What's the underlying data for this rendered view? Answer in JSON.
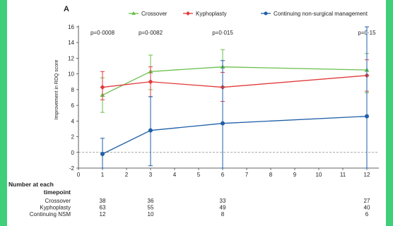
{
  "chart_data": {
    "type": "line",
    "panel_label": "A",
    "ylabel": "Improvement in RDQ score",
    "x_ticks": [
      0,
      1,
      2,
      3,
      4,
      5,
      6,
      7,
      8,
      9,
      10,
      11,
      12
    ],
    "y_ticks": [
      -2,
      0,
      2,
      4,
      6,
      8,
      10,
      12,
      14,
      16
    ],
    "xlim": [
      0,
      12.5
    ],
    "ylim": [
      -2,
      16
    ],
    "reference_line": 0,
    "legend_position": "top-right",
    "series": [
      {
        "name": "Crossover",
        "color": "#6abf4b",
        "marker": "triangle",
        "x": [
          1,
          3,
          6,
          12
        ],
        "y": [
          7.3,
          10.3,
          10.9,
          10.5
        ],
        "err_low": [
          5.1,
          8.0,
          8.4,
          7.6
        ],
        "err_high": [
          9.5,
          12.4,
          13.1,
          12.6
        ]
      },
      {
        "name": "Kyphoplasty",
        "color": "#e23a3a",
        "marker": "diamond",
        "x": [
          1,
          3,
          6,
          12
        ],
        "y": [
          8.3,
          9.0,
          8.3,
          9.8
        ],
        "err_low": [
          6.7,
          7.1,
          6.5,
          7.8
        ],
        "err_high": [
          10.3,
          10.9,
          10.2,
          11.8
        ]
      },
      {
        "name": "Continuing non-surgical management",
        "color": "#1f5fa8",
        "marker": "circle",
        "x": [
          1,
          3,
          6,
          12
        ],
        "y": [
          -0.2,
          2.8,
          3.7,
          4.6
        ],
        "err_low": [
          -2.0,
          -1.7,
          -2.0,
          -2.0
        ],
        "err_high": [
          1.8,
          7.1,
          11.7,
          16.4
        ]
      }
    ],
    "p_values": [
      {
        "x": 1,
        "label": "p=0·0008"
      },
      {
        "x": 3,
        "label": "p=0·0082"
      },
      {
        "x": 6,
        "label": "p=0·015"
      },
      {
        "x": 12,
        "label": "p=0·15"
      }
    ],
    "risk_table": {
      "title_line1": "Number at each",
      "title_line2": "timepoint",
      "rows": [
        {
          "label": "Crossover",
          "values": [
            "38",
            "36",
            "33",
            "27"
          ]
        },
        {
          "label": "Kyphoplasty",
          "values": [
            "63",
            "55",
            "49",
            "40"
          ]
        },
        {
          "label": "Continuing NSM",
          "values": [
            "12",
            "10",
            "8",
            "6"
          ]
        }
      ]
    }
  }
}
